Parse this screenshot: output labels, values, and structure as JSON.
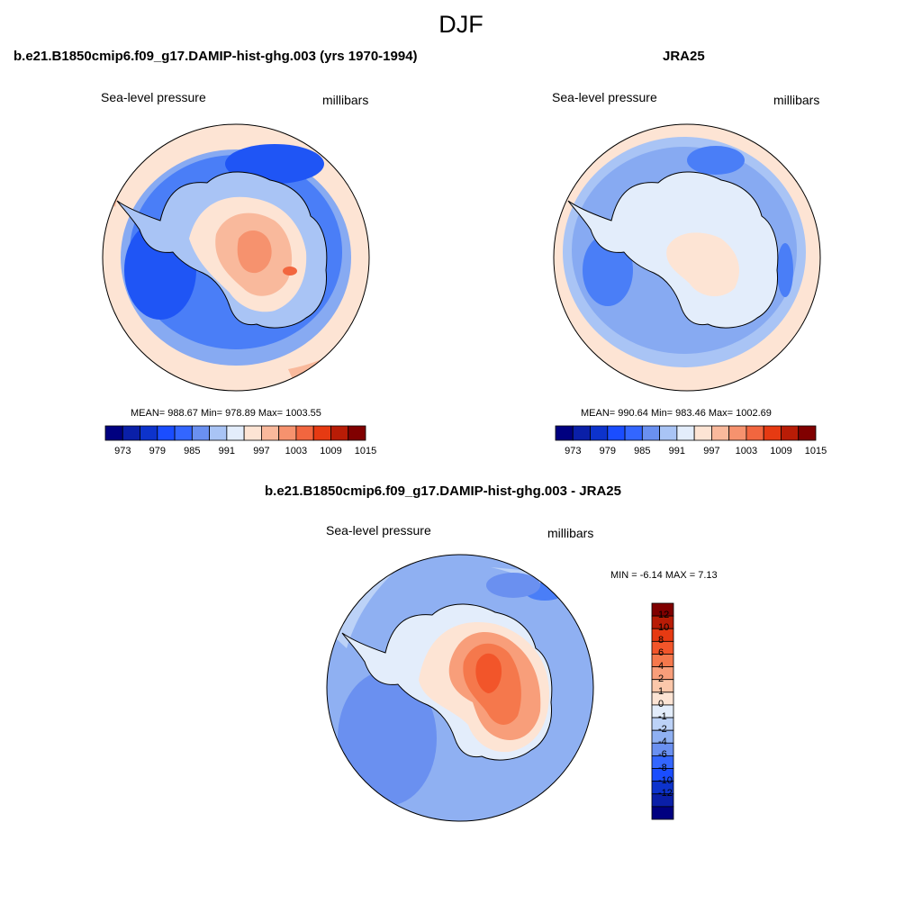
{
  "season_title": "DJF",
  "panels": {
    "model": {
      "title": "b.e21.B1850cmip6.f09_g17.DAMIP-hist-ghg.003 (yrs 1970-1994)",
      "variable": "Sea-level pressure",
      "units": "millibars",
      "stats": "MEAN= 988.67  Min= 978.89  Max= 1003.55"
    },
    "obs": {
      "title": "JRA25",
      "variable": "Sea-level pressure",
      "units": "millibars",
      "stats": "MEAN= 990.64  Min= 983.46  Max= 1002.69"
    },
    "diff": {
      "title": "b.e21.B1850cmip6.f09_g17.DAMIP-hist-ghg.003 - JRA25",
      "variable": "Sea-level pressure",
      "units": "millibars",
      "stats": "MIN =  -6.14 MAX =   7.13"
    }
  },
  "colorbar_abs": {
    "colors": [
      "#000080",
      "#0a1fa8",
      "#0d33cc",
      "#1a4dff",
      "#3366ff",
      "#6a90f0",
      "#a9c4f5",
      "#e3edfb",
      "#fde4d4",
      "#f9b99c",
      "#f6926e",
      "#f2663f",
      "#e63a12",
      "#b81c06",
      "#800000"
    ],
    "labels": [
      "973",
      "979",
      "985",
      "991",
      "997",
      "1003",
      "1009",
      "1015"
    ]
  },
  "colorbar_diff": {
    "colors_top_to_bottom": [
      "#800000",
      "#b81c06",
      "#e63a12",
      "#f2552a",
      "#f5784c",
      "#f89e7a",
      "#fbc7aa",
      "#fde4d4",
      "#e3edfb",
      "#bcd2f7",
      "#8fb0f2",
      "#6a90f0",
      "#3366ff",
      "#1a4dff",
      "#0d33cc",
      "#0a1fa8",
      "#000080"
    ],
    "labels": [
      "12",
      "10",
      "8",
      "6",
      "4",
      "2",
      "1",
      "0",
      "-1",
      "-2",
      "-4",
      "-6",
      "-8",
      "-10",
      "-12"
    ]
  },
  "map_colors": {
    "model_ocean": "#4a7ef7",
    "model_low": "#1f55f5",
    "model_ring": "#87aaf2",
    "model_ring2": "#a9c4f5",
    "model_edge": "#fde4d4",
    "model_edge2": "#f9b99c",
    "model_land1": "#fde4d4",
    "model_land2": "#f9b99c",
    "model_land3": "#f6926e",
    "model_land4": "#f2663f",
    "obs_ocean": "#87aaf2",
    "obs_low": "#4a7ef7",
    "obs_ring": "#a9c4f5",
    "obs_edge": "#fde4d4",
    "obs_edge2": "#f9b99c",
    "obs_land": "#e3edfb",
    "obs_land2": "#fde4d4",
    "diff_ocean": "#8fb0f2",
    "diff_low": "#6a90f0",
    "diff_low2": "#4a7ef7",
    "diff_light": "#bcd2f7",
    "diff_zero": "#e3edfb",
    "diff_pos1": "#fde4d4",
    "diff_pos2": "#f89e7a",
    "diff_pos3": "#f5784c",
    "diff_pos4": "#f2552a"
  }
}
